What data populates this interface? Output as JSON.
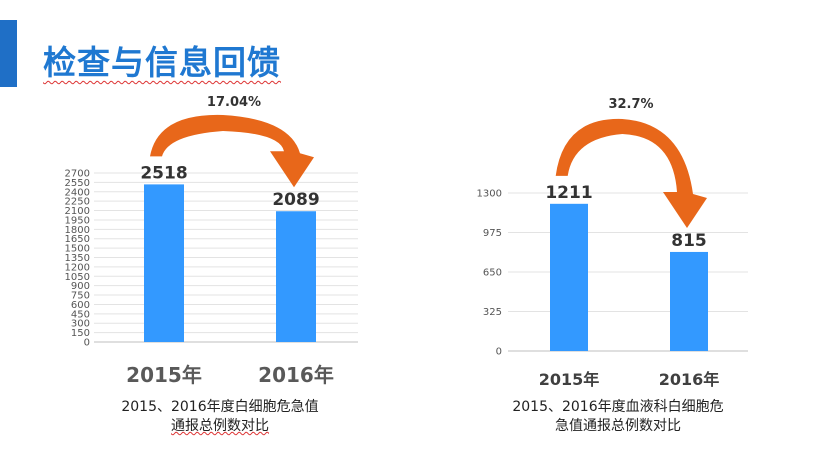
{
  "slide": {
    "title": "检查与信息回馈",
    "accent_color": "#1f6fc6",
    "title_color": "#1f78d1"
  },
  "chart_data": [
    {
      "type": "bar",
      "categories": [
        "2015年",
        "2016年"
      ],
      "values": [
        2518,
        2089
      ],
      "ylim": [
        0,
        2700
      ],
      "y_ticks": [
        0,
        150,
        300,
        450,
        600,
        750,
        900,
        1050,
        1200,
        1350,
        1500,
        1650,
        1800,
        1950,
        2100,
        2250,
        2400,
        2550,
        2700
      ],
      "grid": true,
      "bar_color": "#3399ff",
      "change_label": "17.04%",
      "arrow_color": "#e8671a",
      "caption_line1": "2015、2016年度白细胞危急值",
      "caption_line2": "通报总例数对比"
    },
    {
      "type": "bar",
      "categories": [
        "2015年",
        "2016年"
      ],
      "values": [
        1211,
        815
      ],
      "ylim": [
        0,
        1300
      ],
      "y_ticks": [
        0,
        325,
        650,
        975,
        1300
      ],
      "grid": true,
      "bar_color": "#3399ff",
      "change_label": "32.7%",
      "arrow_color": "#e8671a",
      "caption_line1": "2015、2016年度血液科白细胞危",
      "caption_line2": "急值通报总例数对比"
    }
  ]
}
